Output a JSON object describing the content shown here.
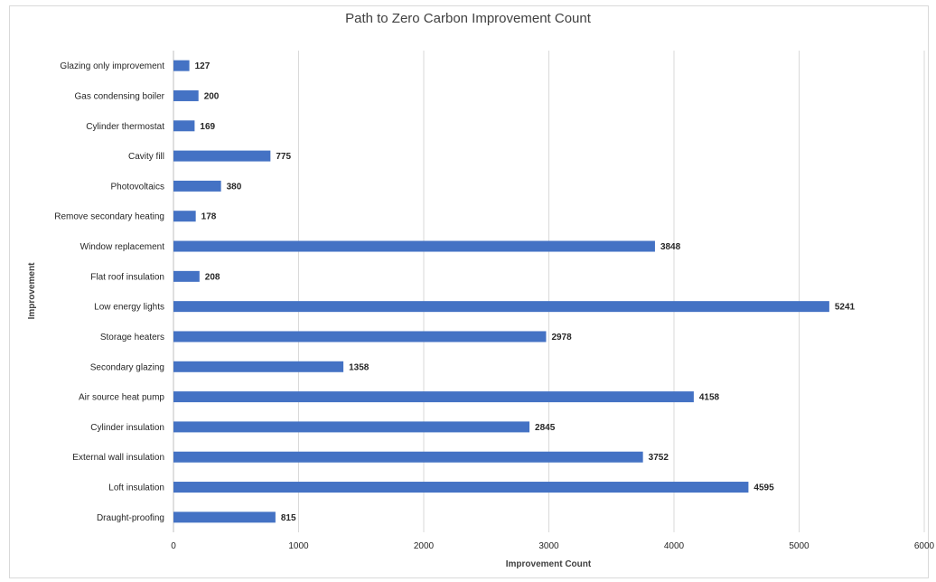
{
  "chart_data": {
    "type": "bar",
    "orientation": "horizontal",
    "title": "Path to Zero Carbon Improvement Count",
    "xlabel": "Improvement Count",
    "ylabel": "Improvement",
    "xlim": [
      0,
      6000
    ],
    "xticks": [
      0,
      1000,
      2000,
      3000,
      4000,
      5000,
      6000
    ],
    "grid": true,
    "bar_color": "#4472c4",
    "categories": [
      "Glazing only improvement",
      "Gas condensing boiler",
      "Cylinder thermostat",
      "Cavity fill",
      "Photovoltaics",
      "Remove secondary heating",
      "Window replacement",
      "Flat roof insulation",
      "Low energy lights",
      "Storage heaters",
      "Secondary glazing",
      "Air source heat pump",
      "Cylinder insulation",
      "External wall insulation",
      "Loft insulation",
      "Draught-proofing"
    ],
    "values": [
      127,
      200,
      169,
      775,
      380,
      178,
      3848,
      208,
      5241,
      2978,
      1358,
      4158,
      2845,
      3752,
      4595,
      815
    ]
  }
}
